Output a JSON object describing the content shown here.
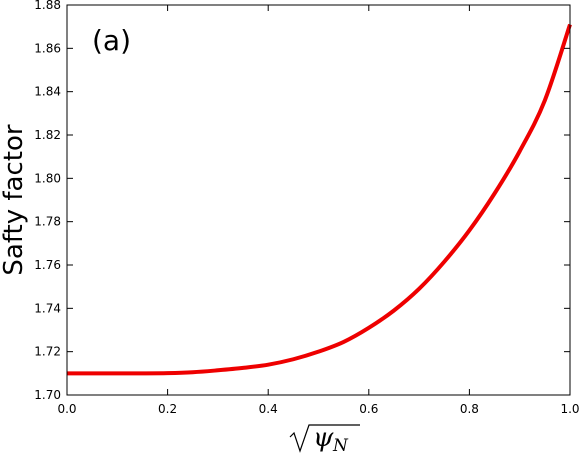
{
  "chart_data": {
    "type": "line",
    "title": "",
    "panel_label": "(a)",
    "ylabel": "Safty factor",
    "xlabel": {
      "base": "ψ",
      "subscript": "N",
      "wrapped_in": "sqrt"
    },
    "xlim": [
      0.0,
      1.0
    ],
    "ylim": [
      1.7,
      1.88
    ],
    "x_ticks": [
      "0.0",
      "0.2",
      "0.4",
      "0.6",
      "0.8",
      "1.0"
    ],
    "y_ticks": [
      "1.70",
      "1.72",
      "1.74",
      "1.76",
      "1.78",
      "1.80",
      "1.82",
      "1.84",
      "1.86",
      "1.88"
    ],
    "grid": false,
    "series": [
      {
        "color": "#ee0000",
        "x": [
          0.0,
          0.05,
          0.1,
          0.15,
          0.2,
          0.25,
          0.3,
          0.35,
          0.4,
          0.45,
          0.5,
          0.55,
          0.6,
          0.65,
          0.7,
          0.75,
          0.8,
          0.85,
          0.9,
          0.95,
          1.0
        ],
        "y": [
          1.71,
          1.71,
          1.71,
          1.71,
          1.7101,
          1.7105,
          1.7114,
          1.7125,
          1.714,
          1.7165,
          1.72,
          1.7245,
          1.731,
          1.739,
          1.749,
          1.7615,
          1.776,
          1.793,
          1.8125,
          1.836,
          1.871
        ]
      }
    ]
  }
}
